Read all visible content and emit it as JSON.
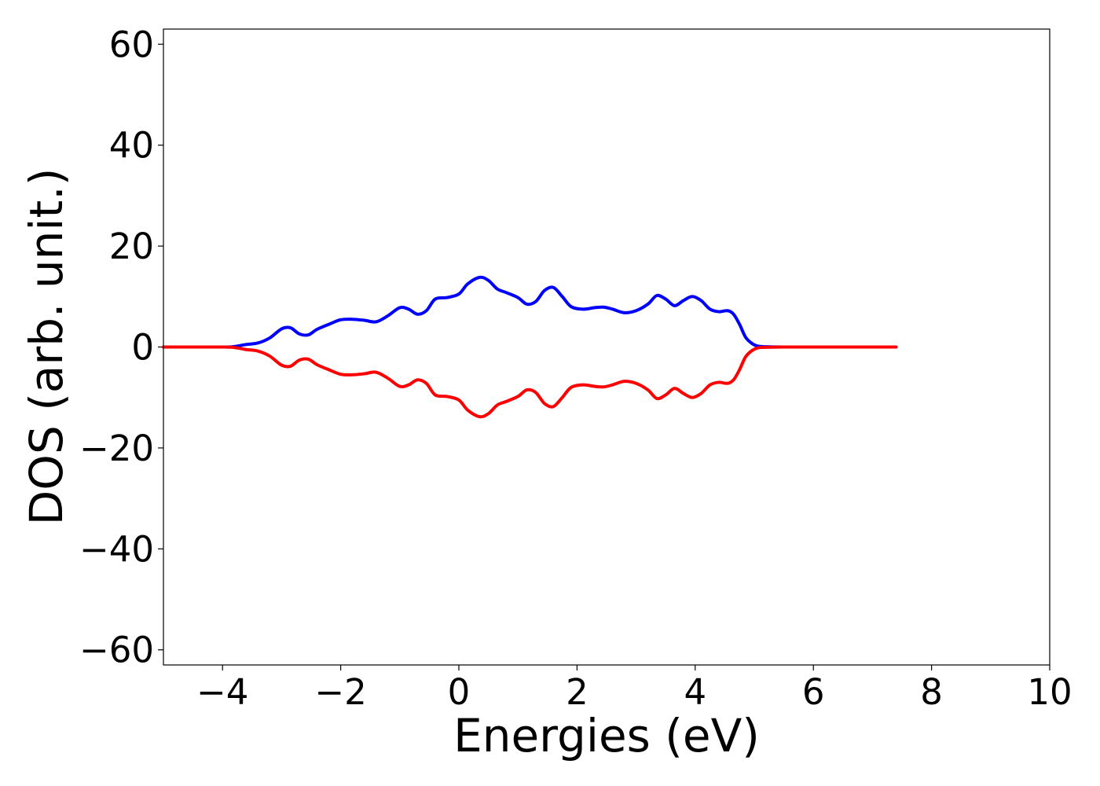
{
  "chart_data": {
    "type": "line",
    "title": "",
    "xlabel": "Energies (eV)",
    "ylabel": "DOS (arb. unit.)",
    "xlim": [
      -5,
      10
    ],
    "ylim": [
      -63,
      63
    ],
    "grid": false,
    "x_ticks": [
      -4,
      -2,
      0,
      2,
      4,
      6,
      8,
      10
    ],
    "x_tick_labels": [
      "−4",
      "−2",
      "0",
      "2",
      "4",
      "6",
      "8",
      "10"
    ],
    "y_ticks": [
      60,
      40,
      20,
      0,
      -20,
      -40,
      -60
    ],
    "y_tick_labels": [
      "60",
      "40",
      "20",
      "0",
      "−20",
      "−40",
      "−60"
    ],
    "x": [
      -5.0,
      -4.0,
      -3.8,
      -3.6,
      -3.4,
      -3.2,
      -3.0,
      -2.85,
      -2.7,
      -2.55,
      -2.4,
      -2.2,
      -2.0,
      -1.8,
      -1.6,
      -1.4,
      -1.2,
      -1.0,
      -0.85,
      -0.7,
      -0.55,
      -0.4,
      -0.2,
      0.0,
      0.15,
      0.35,
      0.5,
      0.65,
      0.8,
      1.0,
      1.15,
      1.3,
      1.45,
      1.6,
      1.75,
      1.9,
      2.1,
      2.3,
      2.45,
      2.6,
      2.8,
      3.0,
      3.2,
      3.35,
      3.5,
      3.65,
      3.8,
      3.95,
      4.1,
      4.25,
      4.4,
      4.55,
      4.65,
      4.75,
      4.85,
      4.95,
      5.05,
      5.2,
      5.5,
      6.0,
      7.0,
      7.4
    ],
    "series": [
      {
        "color": "#0000ff",
        "values": [
          0.0,
          0.0,
          0.1,
          0.5,
          0.8,
          1.8,
          3.6,
          3.8,
          2.6,
          2.4,
          3.5,
          4.5,
          5.4,
          5.5,
          5.3,
          5.0,
          6.2,
          7.8,
          7.5,
          6.5,
          7.2,
          9.5,
          9.8,
          10.5,
          12.5,
          13.8,
          13.2,
          11.5,
          10.8,
          9.8,
          8.5,
          9.0,
          11.2,
          11.8,
          10.0,
          8.0,
          7.5,
          7.8,
          7.9,
          7.5,
          6.8,
          7.2,
          8.5,
          10.2,
          9.5,
          8.2,
          9.2,
          10.0,
          9.2,
          7.5,
          7.0,
          7.2,
          6.5,
          4.5,
          2.0,
          0.8,
          0.2,
          0.05,
          0.0,
          0.0,
          0.0,
          0.0
        ]
      },
      {
        "color": "#ff0000",
        "values": [
          0.0,
          0.0,
          -0.1,
          -0.5,
          -0.8,
          -1.8,
          -3.6,
          -3.8,
          -2.6,
          -2.4,
          -3.5,
          -4.5,
          -5.4,
          -5.5,
          -5.3,
          -5.0,
          -6.2,
          -7.8,
          -7.5,
          -6.5,
          -7.2,
          -9.5,
          -9.8,
          -10.5,
          -12.5,
          -13.8,
          -13.2,
          -11.5,
          -10.8,
          -9.8,
          -8.5,
          -9.0,
          -11.2,
          -11.8,
          -10.0,
          -8.0,
          -7.5,
          -7.8,
          -7.9,
          -7.5,
          -6.8,
          -7.2,
          -8.5,
          -10.2,
          -9.5,
          -8.2,
          -9.2,
          -10.0,
          -9.2,
          -7.5,
          -7.0,
          -7.2,
          -6.5,
          -4.5,
          -2.0,
          -0.8,
          -0.2,
          -0.05,
          0.0,
          0.0,
          0.0,
          0.0
        ]
      }
    ]
  }
}
